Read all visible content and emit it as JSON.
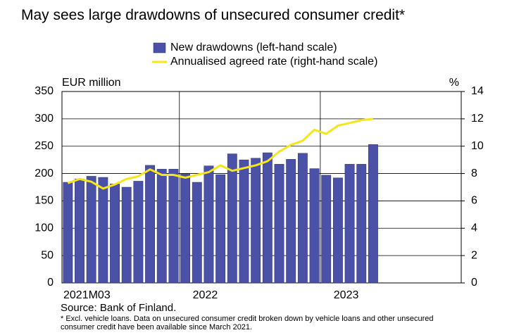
{
  "chart_data": {
    "type": "bar_line",
    "title": "May sees large drawdowns of unsecured consumer credit*",
    "y_label": "EUR million",
    "y2_label": "%",
    "source": "Source: Bank of Finland.",
    "footnote": [
      "* Excl. vehicle loans. Data on unsecured consumer credit broken down by vehicle loans and other unsecured",
      "consumer credit have been available since March 2021."
    ],
    "categories": [
      "2021M03",
      null,
      null,
      null,
      null,
      null,
      null,
      null,
      null,
      null,
      "2022",
      null,
      null,
      null,
      null,
      null,
      null,
      null,
      null,
      null,
      null,
      null,
      "2023",
      null,
      null,
      null,
      null,
      null,
      null,
      null,
      null,
      null,
      null,
      null
    ],
    "series": [
      {
        "name": "New drawdowns (left-hand scale)",
        "color": "#4a51a6",
        "kind": "bar",
        "values": [
          184,
          190,
          195,
          193,
          181,
          175,
          186,
          215,
          208,
          208,
          199,
          184,
          214,
          198,
          236,
          225,
          228,
          238,
          217,
          226,
          237,
          209,
          197,
          192,
          217,
          217,
          253,
          null,
          null,
          null,
          null,
          null,
          null,
          null
        ]
      },
      {
        "name": "Annualised agreed rate (right-hand scale)",
        "color": "#f5e61a",
        "kind": "line",
        "axis": "y2",
        "values": [
          7.3,
          7.6,
          7.4,
          6.9,
          7.2,
          7.6,
          7.8,
          8.3,
          7.9,
          7.9,
          7.7,
          7.9,
          8.1,
          8.6,
          8.2,
          8.4,
          8.6,
          8.9,
          9.6,
          10.1,
          10.4,
          11.2,
          10.9,
          11.5,
          11.7,
          11.9,
          12.0,
          null,
          null,
          null,
          null,
          null,
          null,
          null
        ]
      }
    ],
    "ylim": [
      0,
      350
    ],
    "yticks": [
      0,
      50,
      100,
      150,
      200,
      250,
      300,
      350
    ],
    "y2lim": [
      0,
      14
    ],
    "y2ticks": [
      0,
      2,
      4,
      6,
      8,
      10,
      12,
      14
    ],
    "grid": true
  }
}
